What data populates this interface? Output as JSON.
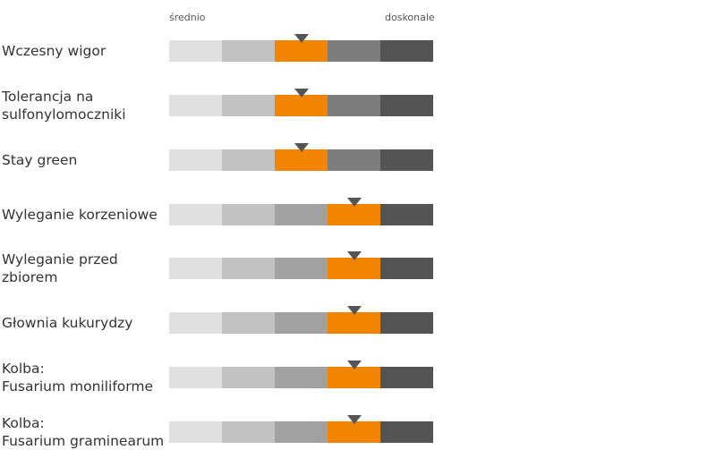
{
  "chart_data": {
    "type": "rating-scale",
    "scale": {
      "low_label": "średnio",
      "high_label": "doskonale",
      "levels": 5
    },
    "colors": {
      "segments": [
        "#e0e0e0",
        "#c2c2c2",
        "#a1a1a1",
        "#7d7d7d",
        "#545454"
      ],
      "highlight": "#f18400",
      "marker": "#555555"
    },
    "traits": [
      {
        "label": "Wczesny wigor",
        "rating": 3
      },
      {
        "label": "Tolerancja na\nsulfonylomoczniki",
        "rating": 3
      },
      {
        "label": "Stay green",
        "rating": 3
      },
      {
        "label": "Wyleganie korzeniowe",
        "rating": 4
      },
      {
        "label": "Wyleganie przed\nzbiorem",
        "rating": 4
      },
      {
        "label": "Głownia kukurydzy",
        "rating": 4
      },
      {
        "label": "Kolba:\nFusarium moniliforme",
        "rating": 4
      },
      {
        "label": "Kolba:\nFusarium graminearum",
        "rating": 4
      }
    ]
  }
}
